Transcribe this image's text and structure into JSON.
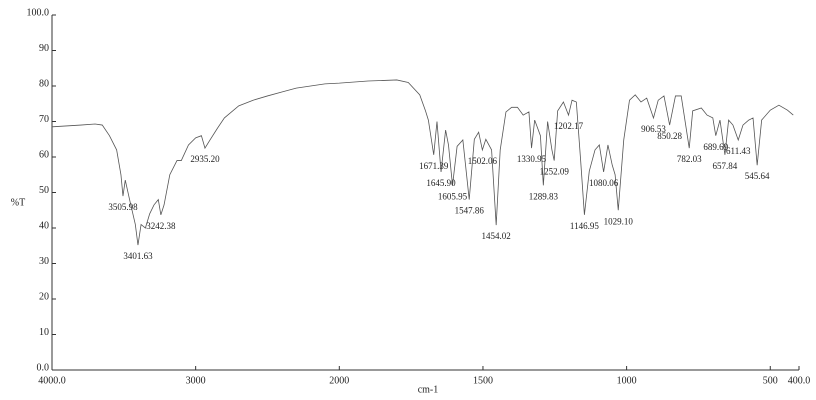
{
  "chart_data": {
    "type": "line",
    "ylabel": "%T",
    "xlabel": "cm-1",
    "xlim": [
      4000,
      400
    ],
    "x_scale_change": 2000,
    "ylim": [
      0,
      100
    ],
    "xticks": [
      {
        "value": 4000,
        "label": "4000.0"
      },
      3000,
      2000,
      1500,
      1000,
      500,
      {
        "value": 400,
        "label": "400.0"
      }
    ],
    "yticks": [
      {
        "value": 0,
        "label": "0.0"
      },
      10,
      20,
      30,
      40,
      50,
      60,
      70,
      80,
      90,
      {
        "value": 100,
        "label": "100.0"
      }
    ],
    "grid": false,
    "series": [
      {
        "name": "%T",
        "color": "#555555",
        "x": [
          4000,
          3800,
          3700,
          3650,
          3600,
          3550,
          3520,
          3505.98,
          3490,
          3460,
          3420,
          3401.63,
          3380,
          3350,
          3320,
          3290,
          3260,
          3242.38,
          3220,
          3180,
          3130,
          3100,
          3050,
          3000,
          2960,
          2935.2,
          2900,
          2850,
          2800,
          2700,
          2600,
          2500,
          2400,
          2300,
          2200,
          2100,
          2000,
          1900,
          1800,
          1760,
          1720,
          1700,
          1690,
          1671.39,
          1660,
          1645.9,
          1630,
          1620,
          1605.95,
          1590,
          1570,
          1547.86,
          1530,
          1515,
          1502.06,
          1490,
          1470,
          1454.02,
          1440,
          1420,
          1400,
          1380,
          1360,
          1340,
          1330.95,
          1320,
          1300,
          1289.83,
          1275,
          1260,
          1252.09,
          1240,
          1220,
          1202.17,
          1190,
          1175,
          1160,
          1146.95,
          1130,
          1110,
          1095,
          1080.06,
          1065,
          1050,
          1040,
          1029.1,
          1010,
          990,
          970,
          950,
          930,
          906.53,
          890,
          870,
          850.28,
          830,
          810,
          782.03,
          770,
          740,
          720,
          700,
          689.69,
          675,
          657.84,
          645,
          630,
          611.43,
          595,
          575,
          560,
          545.64,
          530,
          500,
          470,
          440,
          420
        ],
        "values": [
          68.5,
          69,
          69.3,
          69,
          66,
          62,
          55,
          49,
          53.5,
          48,
          41,
          35.2,
          41,
          40,
          44,
          46.5,
          48,
          43.7,
          46.5,
          55,
          59,
          59,
          63.4,
          65.4,
          66,
          62.5,
          64.8,
          68,
          71,
          74.4,
          76,
          77.2,
          78.3,
          79.4,
          80,
          80.6,
          80.8,
          81.4,
          81.7,
          81,
          77.5,
          73,
          70.4,
          60.6,
          70,
          55.8,
          67.6,
          63.4,
          52,
          63,
          64.8,
          48,
          65,
          67,
          62,
          65,
          62,
          40.8,
          62,
          72.7,
          74,
          74,
          71.8,
          72.7,
          62.5,
          70.4,
          66,
          52,
          70,
          62,
          59,
          73,
          75.5,
          71.8,
          76,
          75.5,
          59,
          43.7,
          56,
          62,
          63.4,
          55.8,
          63.4,
          57.7,
          55,
          45,
          64.8,
          76,
          77.5,
          75.5,
          76.6,
          71,
          76,
          77.2,
          69,
          77.2,
          77.2,
          62.5,
          73,
          73.8,
          71.8,
          71,
          66,
          70.4,
          60.6,
          70.4,
          69,
          64.8,
          69,
          70.4,
          71,
          57.7,
          70.4,
          73.2,
          74.6,
          73.2,
          71.8
        ]
      }
    ],
    "annotations": [
      {
        "value": 3505.98,
        "label": "3505.98"
      },
      {
        "value": 3401.63,
        "label": "3401.63"
      },
      {
        "value": 3242.38,
        "label": "3242.38"
      },
      {
        "value": 2935.2,
        "label": "2935.20"
      },
      {
        "value": 1671.39,
        "label": "1671.39"
      },
      {
        "value": 1645.9,
        "label": "1645.90"
      },
      {
        "value": 1605.95,
        "label": "1605.95"
      },
      {
        "value": 1547.86,
        "label": "1547.86"
      },
      {
        "value": 1502.06,
        "label": "1502.06"
      },
      {
        "value": 1454.02,
        "label": "1454.02"
      },
      {
        "value": 1330.95,
        "label": "1330.95"
      },
      {
        "value": 1289.83,
        "label": "1289.83"
      },
      {
        "value": 1252.09,
        "label": "1252.09"
      },
      {
        "value": 1202.17,
        "label": "1202.17"
      },
      {
        "value": 1146.95,
        "label": "1146.95"
      },
      {
        "value": 1080.06,
        "label": "1080.06"
      },
      {
        "value": 1029.1,
        "label": "1029.10"
      },
      {
        "value": 906.53,
        "label": "906.53"
      },
      {
        "value": 850.28,
        "label": "850.28"
      },
      {
        "value": 782.03,
        "label": "782.03"
      },
      {
        "value": 689.69,
        "label": "689.69"
      },
      {
        "value": 657.84,
        "label": "657.84"
      },
      {
        "value": 611.43,
        "label": "611.43"
      },
      {
        "value": 545.64,
        "label": "545.64"
      }
    ]
  }
}
